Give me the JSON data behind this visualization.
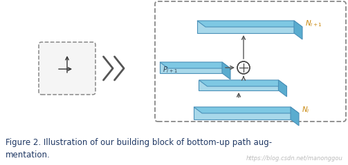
{
  "fig_width": 5.03,
  "fig_height": 2.39,
  "dpi": 100,
  "bg_color": "#ffffff",
  "caption_line1": "Figure 2. Illustration of our building block of bottom-up path aug-",
  "caption_line2": "mentation.",
  "caption_color": "#1f3864",
  "caption_fontsize": 8.5,
  "watermark": "https://blog.csdn.net/manonggou",
  "watermark_color": "#bbbbbb",
  "slab_face": "#a8d8ea",
  "slab_top": "#7ec8e3",
  "slab_right": "#5aaccf",
  "slab_edge": "#4a90b8",
  "dashed_box_color": "#888888",
  "arrow_color": "#555555",
  "label_orange": "#c8860a",
  "label_dark": "#2c3e50"
}
